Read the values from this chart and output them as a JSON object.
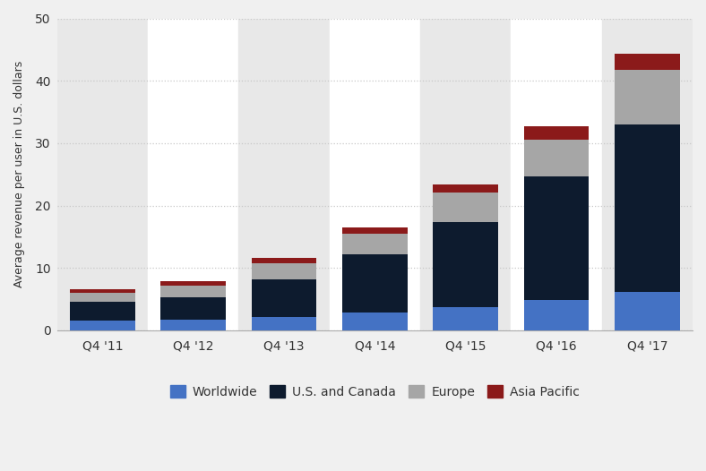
{
  "categories": [
    "Q4 '11",
    "Q4 '12",
    "Q4 '13",
    "Q4 '14",
    "Q4 '15",
    "Q4 '16",
    "Q4 '17"
  ],
  "worldwide": [
    1.54,
    1.76,
    2.14,
    2.81,
    3.73,
    4.83,
    6.18
  ],
  "us_canada": [
    3.02,
    3.53,
    6.03,
    9.34,
    13.68,
    19.81,
    26.76
  ],
  "europe": [
    1.42,
    1.85,
    2.58,
    3.37,
    4.63,
    5.88,
    8.86
  ],
  "asia_pacific": [
    0.53,
    0.7,
    0.92,
    1.03,
    1.4,
    2.13,
    2.6
  ],
  "colors": {
    "worldwide": "#4472c4",
    "us_canada": "#0d1b2e",
    "europe": "#a6a6a6",
    "asia_pacific": "#8b1a1a"
  },
  "ylabel": "Average revenue per user in U.S. dollars",
  "ylim": [
    0,
    50
  ],
  "yticks": [
    0,
    10,
    20,
    30,
    40,
    50
  ],
  "legend_labels": [
    "Worldwide",
    "U.S. and Canada",
    "Europe",
    "Asia Pacific"
  ],
  "background_color": "#f0f0f0",
  "plot_background_white": "#ffffff",
  "plot_background_gray": "#e8e8e8",
  "grid_color": "#c8c8c8"
}
